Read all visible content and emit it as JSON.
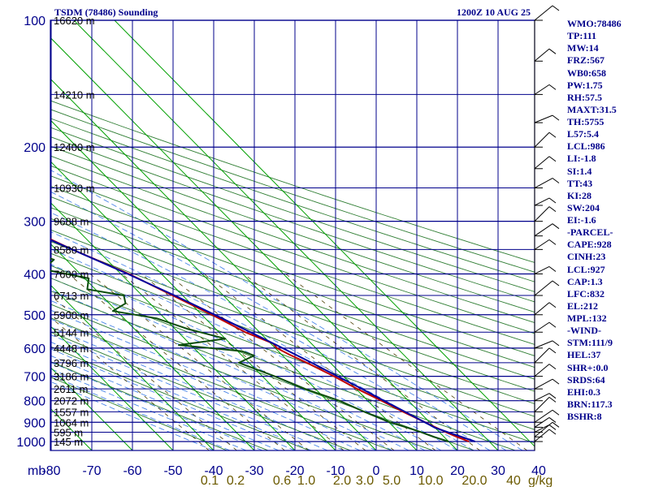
{
  "header": {
    "title": "TSDM (78486) Sounding",
    "time": "1200Z 10 AUG 25"
  },
  "axis": {
    "unit_label": "mb",
    "pressure_ticks": [
      100,
      200,
      300,
      400,
      500,
      600,
      700,
      800,
      900,
      1000
    ],
    "temperature_ticks": [
      -80,
      -70,
      -60,
      -50,
      -40,
      -30,
      -20,
      -10,
      0,
      10,
      20,
      30,
      40
    ],
    "mixing_ratio_label": "g/kg",
    "mixing_ratio_ticks": [
      "0.1",
      "0.2",
      "0.6",
      "1.0",
      "2.0",
      "3.0",
      "5.0",
      "10.0",
      "20.0",
      "40"
    ]
  },
  "height_labels": [
    {
      "p": 100,
      "label": "16620 m"
    },
    {
      "p": 150,
      "label": "14210 m"
    },
    {
      "p": 200,
      "label": "12400 m"
    },
    {
      "p": 250,
      "label": "10930 m"
    },
    {
      "p": 300,
      "label": "9688 m"
    },
    {
      "p": 350,
      "label": "8580 m"
    },
    {
      "p": 400,
      "label": "7600 m"
    },
    {
      "p": 450,
      "label": "6713 m"
    },
    {
      "p": 500,
      "label": "5900 m"
    },
    {
      "p": 550,
      "label": "5144 m"
    },
    {
      "p": 600,
      "label": "4448 m"
    },
    {
      "p": 650,
      "label": "3796 m"
    },
    {
      "p": 700,
      "label": "3186 m"
    },
    {
      "p": 750,
      "label": "2611 m"
    },
    {
      "p": 800,
      "label": "2072 m"
    },
    {
      "p": 850,
      "label": "1557 m"
    },
    {
      "p": 900,
      "label": "1064 m"
    },
    {
      "p": 950,
      "label": "595 m"
    },
    {
      "p": 1000,
      "label": "145 m"
    }
  ],
  "indices": [
    "WMO:78486",
    "TP:111",
    "MW:14",
    "FRZ:567",
    "WB0:658",
    "PW:1.75",
    "RH:57.5",
    "MAXT:31.5",
    "TH:5755",
    "L57:5.4",
    "LCL:986",
    "LI:-1.8",
    "SI:1.4",
    "TT:43",
    "KI:28",
    "SW:204",
    "EI:-1.6",
    "-PARCEL-",
    "CAPE:928",
    "CINH:23",
    "LCL:927",
    "CAP:1.3",
    "LFC:832",
    "EL:212",
    "MPL:132",
    "-WIND-",
    "STM:111/9",
    "HEL:37",
    "SHR+:0.0",
    "SRDS:64",
    "EHI:0.3",
    "BRN:117.3",
    "BSHR:8"
  ],
  "colors": {
    "isobar": "#00008b",
    "isotherm": "#00a000",
    "dry_adiabat": "#2e7d32",
    "moist_adiabat": "#4a86e8",
    "mixing_ratio": "#4a3d00",
    "temperature": "#c00000",
    "dewpoint": "#0b4d0b",
    "parcel": "#0000a0",
    "label": "#00008b",
    "mixing_label": "#6b5a00",
    "wind": "#000000"
  },
  "chart_data": {
    "type": "skew-t log-p sounding",
    "station": "TSDM (78486)",
    "valid": "1200Z 10 AUG 25",
    "pressure_unit": "mb",
    "temperature_unit": "C",
    "ylim": [
      1000,
      100
    ],
    "xlim": [
      -80,
      40
    ],
    "series": [
      {
        "name": "Temperature",
        "points": [
          {
            "p": 1000,
            "t": 25.0
          },
          {
            "p": 975,
            "t": 23.2
          },
          {
            "p": 950,
            "t": 21.6
          },
          {
            "p": 925,
            "t": 20.2
          },
          {
            "p": 900,
            "t": 18.9
          },
          {
            "p": 850,
            "t": 16.0
          },
          {
            "p": 800,
            "t": 13.4
          },
          {
            "p": 750,
            "t": 10.3
          },
          {
            "p": 700,
            "t": 7.6
          },
          {
            "p": 650,
            "t": 4.2
          },
          {
            "p": 620,
            "t": 1.8
          },
          {
            "p": 600,
            "t": 0.4
          },
          {
            "p": 585,
            "t": 0.6
          },
          {
            "p": 550,
            "t": -3.5
          },
          {
            "p": 500,
            "t": -7.5
          },
          {
            "p": 450,
            "t": -12.5
          },
          {
            "p": 400,
            "t": -18.0
          },
          {
            "p": 350,
            "t": -26.0
          },
          {
            "p": 300,
            "t": -34.0
          },
          {
            "p": 250,
            "t": -43.5
          },
          {
            "p": 230,
            "t": -48.0
          },
          {
            "p": 200,
            "t": -54.0
          },
          {
            "p": 175,
            "t": -60.0
          },
          {
            "p": 150,
            "t": -65.0
          },
          {
            "p": 130,
            "t": -70.0
          },
          {
            "p": 110,
            "t": -75.0
          },
          {
            "p": 104,
            "t": -77.0
          },
          {
            "p": 100,
            "t": -74.0
          }
        ]
      },
      {
        "name": "Dewpoint",
        "points": [
          {
            "p": 1000,
            "t": 20.0
          },
          {
            "p": 975,
            "t": 17.5
          },
          {
            "p": 950,
            "t": 15.5
          },
          {
            "p": 925,
            "t": 13.0
          },
          {
            "p": 900,
            "t": 10.2
          },
          {
            "p": 850,
            "t": 6.5
          },
          {
            "p": 800,
            "t": 3.0
          },
          {
            "p": 750,
            "t": -2.5
          },
          {
            "p": 700,
            "t": -7.0
          },
          {
            "p": 650,
            "t": -12.5
          },
          {
            "p": 625,
            "t": -7.0
          },
          {
            "p": 610,
            "t": -9.0
          },
          {
            "p": 590,
            "t": -23.0
          },
          {
            "p": 570,
            "t": -10.0
          },
          {
            "p": 540,
            "t": -17.0
          },
          {
            "p": 510,
            "t": -22.0
          },
          {
            "p": 490,
            "t": -31.0
          },
          {
            "p": 470,
            "t": -26.0
          },
          {
            "p": 450,
            "t": -24.5
          },
          {
            "p": 435,
            "t": -32.0
          },
          {
            "p": 410,
            "t": -29.0
          },
          {
            "p": 390,
            "t": -38.0
          },
          {
            "p": 370,
            "t": -33.0
          },
          {
            "p": 355,
            "t": -37.0
          },
          {
            "p": 345,
            "t": -42.0
          },
          {
            "p": 330,
            "t": -38.0
          },
          {
            "p": 310,
            "t": -40.0
          },
          {
            "p": 290,
            "t": -44.0
          },
          {
            "p": 270,
            "t": -52.0
          },
          {
            "p": 255,
            "t": -55.0
          },
          {
            "p": 240,
            "t": -58.0
          },
          {
            "p": 230,
            "t": -65.0
          },
          {
            "p": 220,
            "t": -70.0
          },
          {
            "p": 205,
            "t": -72.0
          },
          {
            "p": 190,
            "t": -69.0
          },
          {
            "p": 175,
            "t": -75.0
          },
          {
            "p": 160,
            "t": -80.0
          }
        ]
      },
      {
        "name": "Parcel",
        "points": [
          {
            "p": 1000,
            "t": 26.5
          },
          {
            "p": 927,
            "t": 20.0
          },
          {
            "p": 900,
            "t": 18.8
          },
          {
            "p": 850,
            "t": 16.5
          },
          {
            "p": 800,
            "t": 14.0
          },
          {
            "p": 750,
            "t": 11.5
          },
          {
            "p": 700,
            "t": 8.5
          },
          {
            "p": 650,
            "t": 5.4
          },
          {
            "p": 600,
            "t": 1.8
          },
          {
            "p": 550,
            "t": -2.2
          },
          {
            "p": 500,
            "t": -6.8
          },
          {
            "p": 450,
            "t": -12.0
          },
          {
            "p": 400,
            "t": -18.3
          },
          {
            "p": 350,
            "t": -26.0
          },
          {
            "p": 300,
            "t": -35.0
          },
          {
            "p": 250,
            "t": -46.0
          },
          {
            "p": 200,
            "t": -58.5
          },
          {
            "p": 150,
            "t": -74.0
          },
          {
            "p": 130,
            "t": -82.0
          }
        ]
      }
    ],
    "wind_pressures": [
      100,
      125,
      150,
      175,
      200,
      225,
      250,
      275,
      300,
      325,
      350,
      400,
      450,
      500,
      550,
      600,
      650,
      700,
      750,
      800,
      850,
      900,
      925,
      950,
      975,
      1000
    ]
  }
}
